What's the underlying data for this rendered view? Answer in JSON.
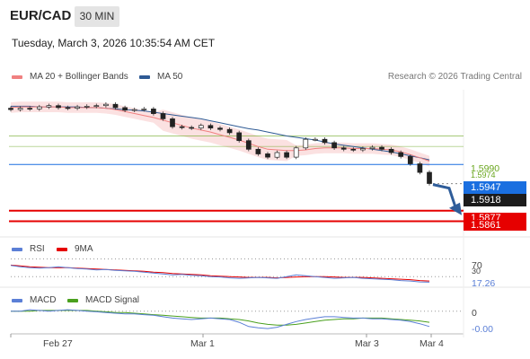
{
  "header": {
    "pair": "EUR/CAD",
    "timeframe": "30 MIN",
    "timestamp": "Tuesday, March 3, 2026 10:35:54 AM CET"
  },
  "legend": {
    "ma20_label": "MA 20 + Bollinger Bands",
    "ma20_color": "#f08080",
    "ma50_label": "MA 50",
    "ma50_color": "#2e5a94",
    "credit": "Research © 2026 Trading Central"
  },
  "levels": {
    "resistance_1": "1.5990",
    "resistance_2": "1.5974",
    "pivot": "1.5947",
    "last_price": "1.5918",
    "support_1": "1.5877",
    "support_2": "1.5861",
    "resistance_color": "#6aa61e",
    "pivot_color": "#1a6fe0",
    "support_color": "#e60000"
  },
  "rsi_panel": {
    "rsi_label": "RSI",
    "rsi_color": "#5b7fd6",
    "ma_label": "9MA",
    "ma_color": "#e60000",
    "upper_value": "70",
    "mid_value": "30",
    "current_value": "17.26"
  },
  "macd_panel": {
    "macd_label": "MACD",
    "macd_color": "#5b7fd6",
    "signal_label": "MACD Signal",
    "signal_color": "#4aa01e",
    "zero_value": "0",
    "current_value": "-0.00"
  },
  "x_axis": {
    "labels": [
      "Feb 27",
      "Mar 1",
      "Mar 3",
      "Mar 4"
    ]
  },
  "chart_data": {
    "type": "line",
    "title": "EUR/CAD",
    "x_labels": [
      "Feb 27",
      "Mar 1",
      "Mar 3",
      "Mar 4"
    ],
    "y_unit": "price",
    "ylim": [
      1.584,
      1.606
    ],
    "close": [
      1.603,
      1.6032,
      1.6031,
      1.6034,
      1.6036,
      1.6033,
      1.6032,
      1.6034,
      1.6035,
      1.6036,
      1.6038,
      1.6033,
      1.6029,
      1.603,
      1.6031,
      1.6024,
      1.6016,
      1.6004,
      1.6003,
      1.6002,
      1.6006,
      1.6002,
      1.6,
      1.5995,
      1.5983,
      1.597,
      1.5963,
      1.5958,
      1.5965,
      1.5958,
      1.5972,
      1.5985,
      1.5985,
      1.598,
      1.5972,
      1.597,
      1.5969,
      1.5971,
      1.5973,
      1.597,
      1.5965,
      1.5959,
      1.5948,
      1.5935,
      1.5918
    ],
    "ma20": [
      1.6033,
      1.6034,
      1.6034,
      1.6034,
      1.6034,
      1.6034,
      1.6033,
      1.6033,
      1.6033,
      1.6033,
      1.6032,
      1.603,
      1.6027,
      1.6024,
      1.6021,
      1.6018,
      1.6014,
      1.601,
      1.6006,
      1.6002,
      1.5999,
      1.5996,
      1.5992,
      1.5988,
      1.5984,
      1.5979,
      1.5974,
      1.597,
      1.5969,
      1.5968,
      1.5968,
      1.5969,
      1.5971,
      1.5972,
      1.5972,
      1.5972,
      1.5971,
      1.5971,
      1.5971,
      1.597,
      1.5969,
      1.5966,
      1.5962,
      1.5957,
      1.5952
    ],
    "ma50": [
      1.6035,
      1.6035,
      1.6035,
      1.6034,
      1.6034,
      1.6034,
      1.6034,
      1.6034,
      1.6033,
      1.6033,
      1.6032,
      1.6031,
      1.603,
      1.6029,
      1.6028,
      1.6026,
      1.6024,
      1.6022,
      1.602,
      1.6018,
      1.6016,
      1.6013,
      1.601,
      1.6007,
      1.6004,
      1.6001,
      1.5999,
      1.5996,
      1.5993,
      1.599,
      1.5988,
      1.5986,
      1.5984,
      1.5981,
      1.5978,
      1.5976,
      1.5974,
      1.5972,
      1.597,
      1.5968,
      1.5966,
      1.5963,
      1.596,
      1.5957,
      1.5954
    ],
    "horizontal_levels": [
      1.599,
      1.5974,
      1.5947,
      1.5877,
      1.5861
    ],
    "forecast_arrow": "down",
    "rsi": [
      55,
      52,
      50,
      49,
      50,
      52,
      50,
      48,
      47,
      45,
      46,
      44,
      43,
      42,
      40,
      38,
      36,
      34,
      35,
      33,
      32,
      30,
      29,
      27,
      26,
      27,
      28,
      27,
      26,
      30,
      34,
      32,
      30,
      28,
      26,
      27,
      28,
      26,
      25,
      24,
      23,
      21,
      20,
      18,
      17.26
    ],
    "rsi_ma": [
      56,
      54,
      52,
      51,
      50,
      50,
      50,
      49,
      48,
      47,
      46,
      45,
      44,
      43,
      42,
      40,
      39,
      37,
      36,
      35,
      34,
      32,
      31,
      30,
      29,
      28,
      28,
      28,
      27,
      28,
      29,
      30,
      30,
      30,
      29,
      28,
      28,
      28,
      27,
      26,
      25,
      24,
      23,
      21,
      20
    ],
    "macd": [
      0.0,
      0.0,
      0.0002,
      0.0001,
      0.0,
      0.0001,
      0.0002,
      0.0001,
      0.0,
      -0.0001,
      -0.0002,
      -0.0003,
      -0.0004,
      -0.0004,
      -0.0005,
      -0.0006,
      -0.0008,
      -0.001,
      -0.0011,
      -0.0012,
      -0.0011,
      -0.001,
      -0.0011,
      -0.0012,
      -0.0016,
      -0.0022,
      -0.0024,
      -0.0025,
      -0.0023,
      -0.0019,
      -0.0015,
      -0.0012,
      -0.001,
      -0.0008,
      -0.0008,
      -0.0009,
      -0.001,
      -0.001,
      -0.0011,
      -0.0011,
      -0.0012,
      -0.0013,
      -0.0015,
      -0.0018,
      -0.0022
    ],
    "macd_signal": [
      0.0,
      0.0,
      0.0,
      0.0001,
      0.0001,
      0.0001,
      0.0001,
      0.0001,
      0.0001,
      0.0,
      -0.0001,
      -0.0002,
      -0.0002,
      -0.0003,
      -0.0004,
      -0.0005,
      -0.0006,
      -0.0007,
      -0.0008,
      -0.0009,
      -0.001,
      -0.001,
      -0.001,
      -0.0011,
      -0.0012,
      -0.0014,
      -0.0017,
      -0.0019,
      -0.002,
      -0.002,
      -0.0019,
      -0.0017,
      -0.0015,
      -0.0013,
      -0.0012,
      -0.0011,
      -0.0011,
      -0.001,
      -0.001,
      -0.001,
      -0.0011,
      -0.0012,
      -0.0013,
      -0.0014,
      -0.0016
    ]
  }
}
